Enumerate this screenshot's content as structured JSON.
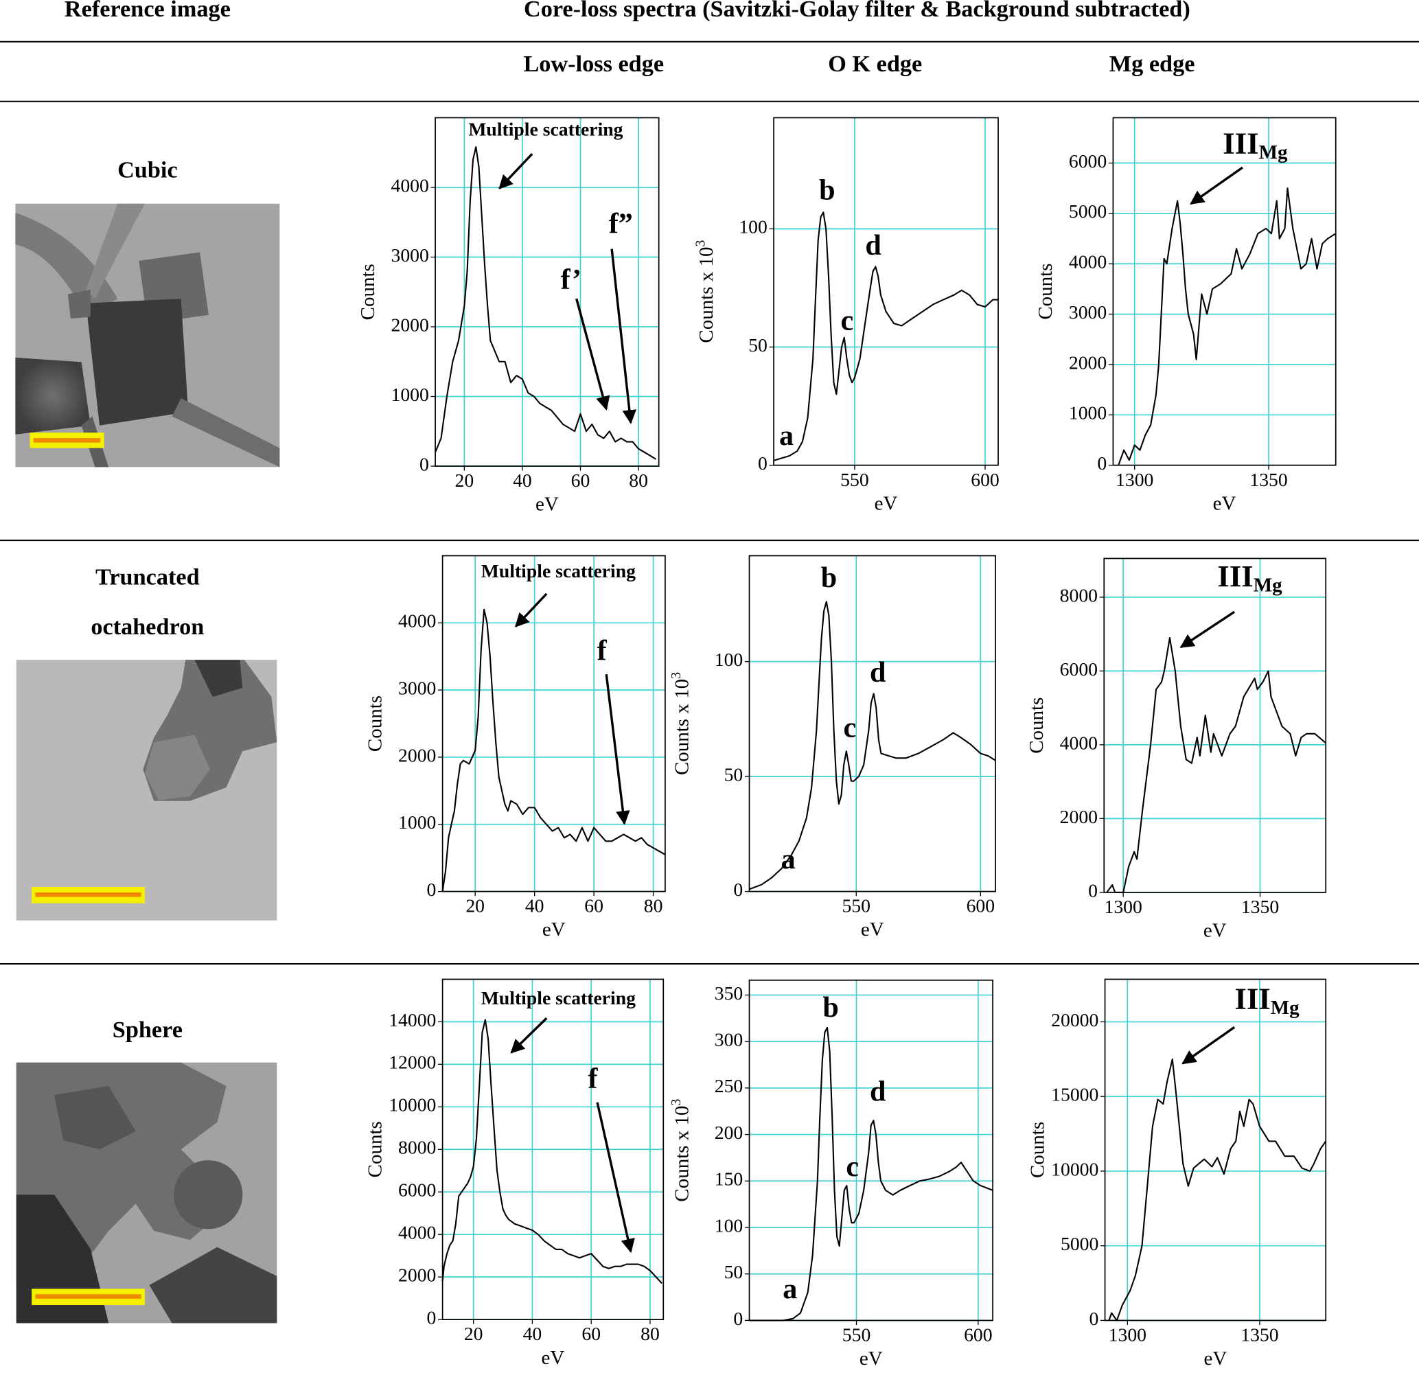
{
  "table": {
    "header": [
      "Reference image",
      "Core-loss spectra (Savitzki-Golay filter & Background subtracted)"
    ],
    "subheader": [
      "Low-loss edge",
      "O K edge",
      "Mg edge"
    ],
    "rows": [
      [
        "Cubic"
      ],
      [
        "Truncated",
        "octahedron"
      ],
      [
        "Sphere"
      ]
    ]
  },
  "chart_data": [
    {
      "type": "line",
      "xlabel": "eV",
      "ylabel": "Counts",
      "color": "#000000",
      "grid": true,
      "grid_color": "#3fd3d3",
      "xlim": [
        10,
        87
      ],
      "ylim": [
        0,
        5000
      ],
      "xticks": [
        20,
        40,
        60,
        80
      ],
      "yticks": [
        0,
        1000,
        2000,
        3000,
        4000
      ],
      "annotations": [
        "Multiple scattering",
        "f’",
        "f”"
      ],
      "x": [
        10,
        12,
        14,
        16,
        18,
        20,
        21,
        22,
        23,
        24,
        25,
        26,
        27,
        28,
        29,
        30,
        32,
        34,
        36,
        38,
        40,
        42,
        44,
        46,
        48,
        50,
        52,
        54,
        56,
        58,
        60,
        62,
        64,
        66,
        68,
        70,
        72,
        74,
        76,
        78,
        80,
        82,
        84,
        86
      ],
      "values": [
        200,
        400,
        1000,
        1500,
        1800,
        2300,
        2800,
        3800,
        4400,
        4580,
        4300,
        3600,
        2900,
        2300,
        1800,
        1700,
        1500,
        1500,
        1200,
        1300,
        1250,
        1050,
        1000,
        900,
        850,
        800,
        700,
        600,
        550,
        500,
        750,
        500,
        600,
        450,
        400,
        500,
        350,
        400,
        350,
        350,
        250,
        200,
        150,
        100
      ]
    },
    {
      "type": "line",
      "xlabel": "eV",
      "ylabel": "Counts x 10",
      "ylabel_superscript": "3",
      "color": "#000000",
      "grid": true,
      "grid_color": "#3fd3d3",
      "xlim": [
        519,
        605
      ],
      "ylim": [
        0,
        147
      ],
      "xticks": [
        550,
        600
      ],
      "yticks": [
        0,
        50,
        100
      ],
      "annotations": [
        "a",
        "b",
        "c",
        "d"
      ],
      "x": [
        519,
        522,
        525,
        528,
        530,
        532,
        534,
        535,
        536,
        537,
        538,
        539,
        540,
        541,
        542,
        543,
        544,
        545,
        546,
        547,
        548,
        549,
        550,
        552,
        554,
        556,
        557,
        558,
        559,
        560,
        562,
        565,
        568,
        572,
        576,
        580,
        584,
        588,
        591,
        594,
        597,
        600,
        603,
        605
      ],
      "values": [
        2,
        3,
        4,
        6,
        10,
        20,
        45,
        70,
        95,
        105,
        107,
        100,
        80,
        55,
        35,
        30,
        40,
        50,
        54,
        45,
        38,
        35,
        37,
        45,
        60,
        75,
        82,
        84,
        80,
        72,
        65,
        60,
        59,
        62,
        65,
        68,
        70,
        72,
        74,
        72,
        68,
        67,
        70,
        70
      ]
    },
    {
      "type": "line",
      "xlabel": "eV",
      "ylabel": "Counts",
      "color": "#000000",
      "grid": true,
      "grid_color": "#3fd3d3",
      "xlim": [
        1292,
        1375
      ],
      "ylim": [
        0,
        6900
      ],
      "xticks": [
        1300,
        1350
      ],
      "yticks": [
        0,
        1000,
        2000,
        3000,
        4000,
        5000,
        6000
      ],
      "annotations": [
        {
          "text": "III",
          "subscript": "Mg"
        }
      ],
      "x": [
        1294,
        1296,
        1298,
        1300,
        1302,
        1304,
        1306,
        1308,
        1309,
        1311,
        1312,
        1314,
        1316,
        1317,
        1318,
        1319,
        1320,
        1322,
        1323,
        1325,
        1327,
        1329,
        1332,
        1336,
        1338,
        1340,
        1343,
        1346,
        1349,
        1351,
        1353,
        1354,
        1356,
        1357,
        1359,
        1362,
        1364,
        1366,
        1368,
        1370,
        1372,
        1375
      ],
      "values": [
        0,
        300,
        100,
        400,
        300,
        600,
        800,
        1400,
        2000,
        4100,
        4000,
        4700,
        5250,
        4800,
        4200,
        3500,
        3000,
        2600,
        2100,
        3400,
        3000,
        3500,
        3600,
        3800,
        4300,
        3900,
        4200,
        4600,
        4700,
        4600,
        5250,
        4500,
        4700,
        5500,
        4700,
        3900,
        4000,
        4500,
        3900,
        4400,
        4500,
        4600
      ]
    },
    {
      "type": "line",
      "xlabel": "eV",
      "ylabel": "Counts",
      "color": "#000000",
      "grid": true,
      "grid_color": "#3fd3d3",
      "xlim": [
        9,
        84
      ],
      "ylim": [
        0,
        5000
      ],
      "xticks": [
        20,
        40,
        60,
        80
      ],
      "yticks": [
        0,
        1000,
        2000,
        3000,
        4000
      ],
      "annotations": [
        "Multiple scattering",
        "f"
      ],
      "x": [
        9,
        10,
        11,
        12,
        13,
        14,
        15,
        16,
        18,
        19,
        20,
        21,
        22,
        23,
        24,
        25,
        26,
        27,
        28,
        29,
        30,
        31,
        32,
        34,
        36,
        38,
        40,
        42,
        44,
        46,
        48,
        50,
        52,
        54,
        56,
        58,
        60,
        62,
        64,
        66,
        68,
        70,
        72,
        74,
        76,
        78,
        80,
        82,
        84
      ],
      "values": [
        0,
        300,
        800,
        1000,
        1200,
        1600,
        1900,
        1950,
        1900,
        2000,
        2100,
        2600,
        3600,
        4200,
        4000,
        3500,
        2800,
        2200,
        1700,
        1500,
        1300,
        1200,
        1350,
        1300,
        1150,
        1250,
        1250,
        1100,
        1000,
        900,
        950,
        800,
        850,
        750,
        950,
        750,
        950,
        850,
        750,
        750,
        800,
        850,
        800,
        750,
        800,
        700,
        650,
        600,
        550
      ]
    },
    {
      "type": "line",
      "xlabel": "eV",
      "ylabel": "Counts x 10",
      "ylabel_superscript": "3",
      "color": "#000000",
      "grid": true,
      "grid_color": "#3fd3d3",
      "xlim": [
        507,
        606
      ],
      "ylim": [
        0,
        146
      ],
      "xticks": [
        550,
        600
      ],
      "yticks": [
        0,
        50,
        100
      ],
      "annotations": [
        "a",
        "b",
        "c",
        "d"
      ],
      "x": [
        507,
        512,
        516,
        520,
        524,
        527,
        530,
        532,
        534,
        535,
        536,
        537,
        538,
        539,
        540,
        541,
        542,
        543,
        544,
        545,
        546,
        547,
        548,
        549,
        551,
        553,
        555,
        556,
        557,
        558,
        559,
        560,
        563,
        566,
        570,
        575,
        580,
        585,
        589,
        592,
        596,
        600,
        603,
        606
      ],
      "values": [
        1,
        3,
        6,
        10,
        16,
        22,
        32,
        45,
        70,
        90,
        110,
        122,
        126,
        120,
        100,
        70,
        48,
        38,
        42,
        55,
        61,
        55,
        48,
        48,
        50,
        55,
        70,
        82,
        86,
        80,
        66,
        60,
        59,
        58,
        58,
        60,
        63,
        66,
        69,
        67,
        64,
        60,
        59,
        57
      ]
    },
    {
      "type": "line",
      "xlabel": "eV",
      "ylabel": "Counts",
      "color": "#000000",
      "grid": true,
      "grid_color": "#3fd3d3",
      "xlim": [
        1293,
        1374
      ],
      "ylim": [
        0,
        9050
      ],
      "xticks": [
        1300,
        1350
      ],
      "yticks": [
        0,
        2000,
        4000,
        6000,
        8000
      ],
      "annotations": [
        {
          "text": "III",
          "subscript": "Mg"
        }
      ],
      "x": [
        1294,
        1296,
        1297,
        1300,
        1302,
        1304,
        1305,
        1307,
        1310,
        1312,
        1314,
        1315,
        1317,
        1319,
        1321,
        1323,
        1325,
        1327,
        1328,
        1330,
        1332,
        1333,
        1336,
        1339,
        1341,
        1344,
        1348,
        1349,
        1351,
        1353,
        1354,
        1358,
        1361,
        1363,
        1365,
        1367,
        1370,
        1374
      ],
      "values": [
        0,
        200,
        0,
        0,
        700,
        1100,
        900,
        2200,
        4000,
        5500,
        5700,
        6000,
        6900,
        6000,
        4500,
        3600,
        3500,
        4200,
        3700,
        4800,
        3800,
        4300,
        3700,
        4300,
        4500,
        5300,
        5800,
        5500,
        5700,
        6000,
        5300,
        4500,
        4300,
        3700,
        4200,
        4300,
        4300,
        4050
      ]
    },
    {
      "type": "line",
      "xlabel": "eV",
      "ylabel": "Counts",
      "color": "#000000",
      "grid": true,
      "grid_color": "#3fd3d3",
      "xlim": [
        9.5,
        84.5
      ],
      "ylim": [
        0,
        16000
      ],
      "xticks": [
        20,
        40,
        60,
        80
      ],
      "yticks": [
        0,
        2000,
        4000,
        6000,
        8000,
        10000,
        12000,
        14000
      ],
      "annotations": [
        "Multiple scattering",
        "f"
      ],
      "x": [
        9.5,
        10,
        11,
        12,
        13,
        14,
        15,
        16,
        17,
        18,
        19,
        20,
        21,
        22,
        23,
        24,
        25,
        26,
        27,
        28,
        29,
        30,
        31,
        32,
        34,
        36,
        38,
        40,
        42,
        44,
        46,
        48,
        50,
        52,
        54,
        56,
        58,
        60,
        62,
        64,
        66,
        68,
        70,
        72,
        74,
        76,
        78,
        80,
        82,
        84
      ],
      "values": [
        1800,
        2500,
        3100,
        3500,
        3700,
        4500,
        5800,
        6000,
        6200,
        6400,
        6700,
        7200,
        8500,
        11000,
        13500,
        14100,
        13200,
        11000,
        9000,
        7000,
        6000,
        5200,
        4900,
        4700,
        4500,
        4400,
        4300,
        4200,
        4000,
        3700,
        3500,
        3300,
        3300,
        3100,
        3000,
        2900,
        3000,
        3100,
        2800,
        2500,
        2400,
        2500,
        2500,
        2600,
        2600,
        2600,
        2500,
        2300,
        2000,
        1700
      ]
    },
    {
      "type": "line",
      "xlabel": "eV",
      "ylabel": "Counts x 10",
      "ylabel_superscript": "3",
      "color": "#000000",
      "grid": true,
      "grid_color": "#3fd3d3",
      "xlim": [
        506,
        606
      ],
      "ylim": [
        0,
        366
      ],
      "xticks": [
        550,
        600
      ],
      "yticks": [
        0,
        50,
        100,
        150,
        200,
        250,
        300,
        350
      ],
      "annotations": [
        "a",
        "b",
        "c",
        "d"
      ],
      "x": [
        506,
        520,
        524,
        527,
        530,
        532,
        534,
        535,
        536,
        537,
        538,
        539,
        540,
        541,
        542,
        543,
        544,
        545,
        546,
        547,
        548,
        549,
        551,
        553,
        555,
        556,
        557,
        558,
        559,
        560,
        562,
        565,
        568,
        572,
        576,
        580,
        584,
        588,
        591,
        593,
        595,
        598,
        601,
        604,
        606
      ],
      "values": [
        0,
        0,
        2,
        8,
        30,
        70,
        150,
        220,
        280,
        310,
        315,
        290,
        220,
        140,
        90,
        80,
        110,
        140,
        145,
        120,
        105,
        105,
        115,
        140,
        180,
        210,
        215,
        200,
        170,
        150,
        140,
        135,
        140,
        145,
        150,
        152,
        155,
        160,
        165,
        170,
        162,
        150,
        145,
        142,
        140
      ]
    },
    {
      "type": "line",
      "xlabel": "eV",
      "ylabel": "Counts",
      "color": "#000000",
      "grid": true,
      "grid_color": "#3fd3d3",
      "xlim": [
        1291.5,
        1375
      ],
      "ylim": [
        0,
        22850
      ],
      "xticks": [
        1300,
        1350
      ],
      "yticks": [
        0,
        5000,
        10000,
        15000,
        20000
      ],
      "annotations": [
        {
          "text": "III",
          "subscript": "Mg"
        }
      ],
      "x": [
        1293,
        1294,
        1296,
        1298,
        1301,
        1303,
        1305.5,
        1307.5,
        1309.5,
        1311.5,
        1313.5,
        1315,
        1317,
        1318.5,
        1321,
        1323,
        1325,
        1329,
        1332,
        1334,
        1336.5,
        1339,
        1341,
        1342.5,
        1344,
        1346,
        1347.5,
        1350,
        1353.5,
        1356,
        1359.5,
        1363,
        1366,
        1369,
        1370.5,
        1373,
        1375
      ],
      "values": [
        0,
        500,
        0,
        1000,
        2000,
        3000,
        5000,
        9000,
        13000,
        14800,
        14500,
        16000,
        17500,
        15000,
        10500,
        9000,
        10200,
        10800,
        10300,
        10900,
        9800,
        11500,
        12000,
        14000,
        13000,
        14800,
        14500,
        13000,
        12000,
        12000,
        11000,
        11000,
        10200,
        10000,
        10500,
        11500,
        12000
      ]
    }
  ]
}
